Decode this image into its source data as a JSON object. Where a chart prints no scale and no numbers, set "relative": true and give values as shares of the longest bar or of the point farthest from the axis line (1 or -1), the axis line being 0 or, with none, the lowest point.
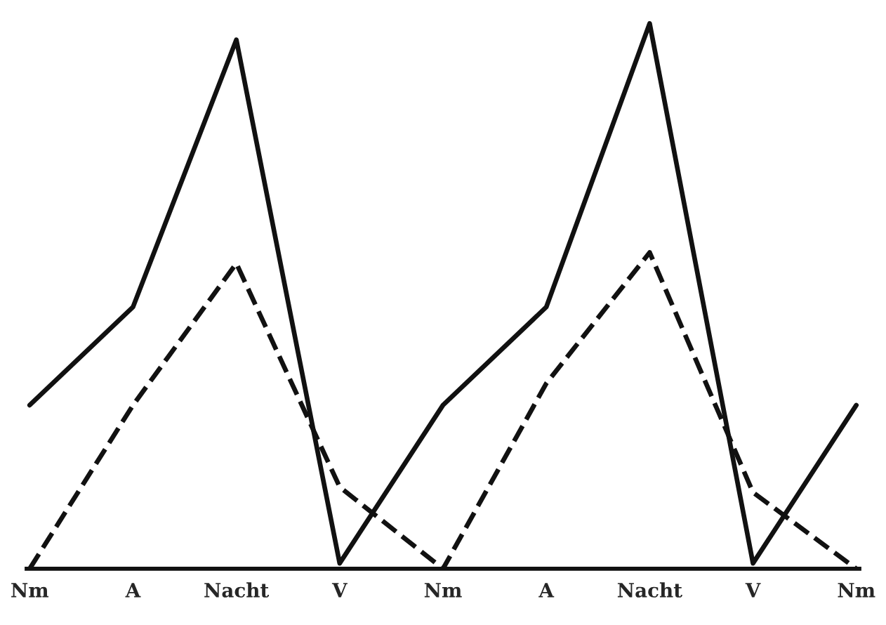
{
  "chart_data": {
    "type": "line",
    "relative": true,
    "categories": [
      "Nm",
      "A",
      "Nacht",
      "V",
      "Nm",
      "A",
      "Nacht",
      "V",
      "Nm"
    ],
    "series": [
      {
        "color": "#111111",
        "line_style": "solid",
        "values": [
          0.3,
          0.48,
          0.97,
          0.01,
          0.3,
          0.48,
          1.0,
          0.01,
          0.3
        ]
      },
      {
        "color": "#111111",
        "line_style": "dashed",
        "values": [
          0.0,
          0.3,
          0.56,
          0.15,
          0.0,
          0.34,
          0.58,
          0.14,
          0.0
        ]
      }
    ],
    "grid": false,
    "legend": false,
    "marker": "none"
  }
}
